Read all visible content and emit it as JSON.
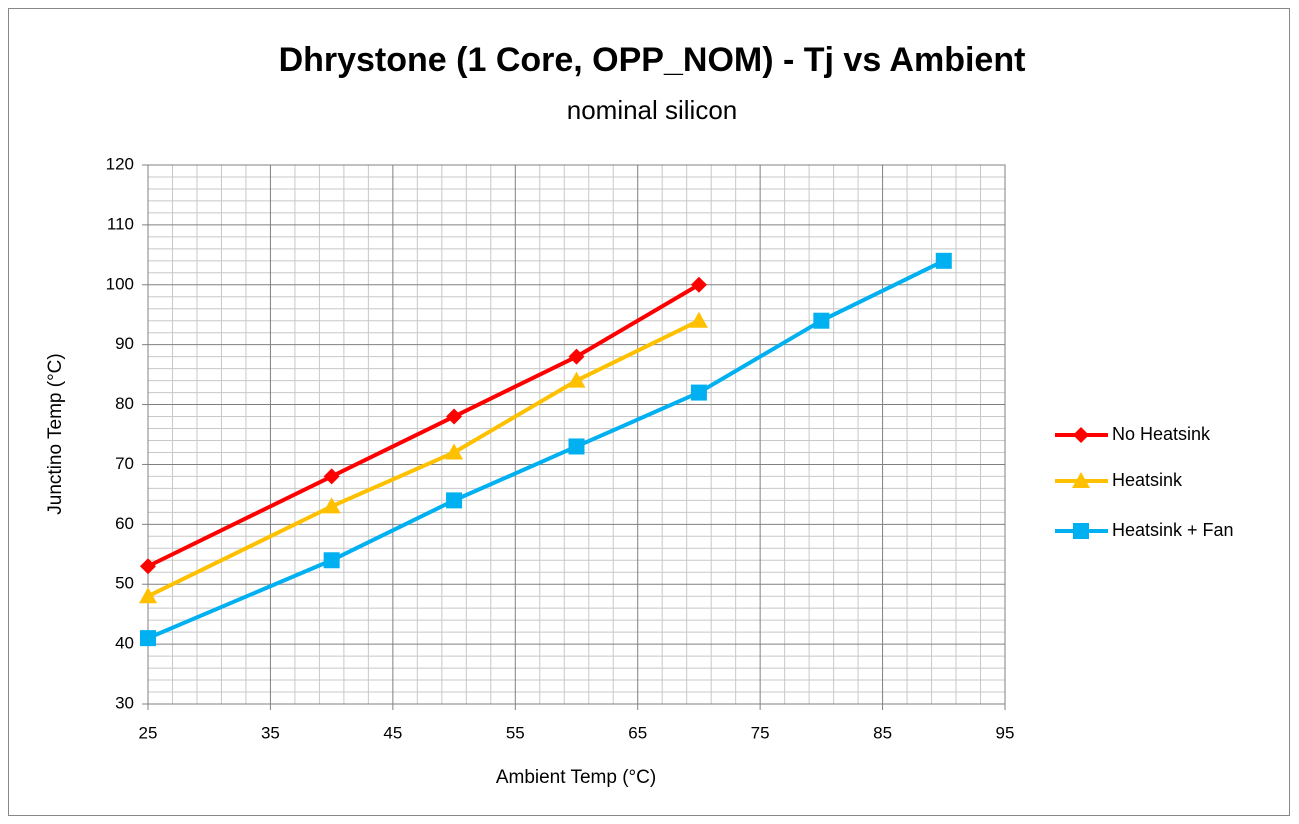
{
  "chart_data": {
    "type": "line",
    "title": "Dhrystone (1 Core, OPP_NOM) - Tj vs Ambient",
    "subtitle": "nominal silicon",
    "xlabel": "Ambient Temp (°C)",
    "ylabel": "Junctino Temp (°C)",
    "xlim": [
      25,
      95
    ],
    "xticks": [
      25,
      35,
      45,
      55,
      65,
      75,
      85,
      95
    ],
    "xminorticks": [
      27,
      29,
      31,
      33,
      37,
      39,
      41,
      43,
      47,
      49,
      51,
      53,
      57,
      59,
      61,
      63,
      67,
      69,
      71,
      73,
      77,
      79,
      81,
      83,
      87,
      89,
      91,
      93
    ],
    "ylim": [
      30,
      120
    ],
    "yticks": [
      30,
      40,
      50,
      60,
      70,
      80,
      90,
      100,
      110,
      120
    ],
    "yminorticks": [
      32,
      34,
      36,
      38,
      42,
      44,
      46,
      48,
      52,
      54,
      56,
      58,
      62,
      64,
      66,
      68,
      72,
      74,
      76,
      78,
      82,
      84,
      86,
      88,
      92,
      94,
      96,
      98,
      102,
      104,
      106,
      108,
      112,
      114,
      116,
      118
    ],
    "grid": true,
    "legend": "right",
    "series": [
      {
        "name": "No Heatsink",
        "color": "#ff0000",
        "marker": "diamond",
        "x": [
          25,
          40,
          50,
          60,
          70
        ],
        "values": [
          53,
          68,
          78,
          88,
          100
        ]
      },
      {
        "name": "Heatsink",
        "color": "#ffc000",
        "marker": "triangle",
        "x": [
          25,
          40,
          50,
          60,
          70
        ],
        "values": [
          48,
          63,
          72,
          84,
          94
        ]
      },
      {
        "name": "Heatsink + Fan",
        "color": "#00b0f0",
        "marker": "square",
        "x": [
          25,
          40,
          50,
          60,
          70,
          80,
          90
        ],
        "values": [
          41,
          54,
          64,
          73,
          82,
          94,
          104
        ]
      }
    ]
  }
}
